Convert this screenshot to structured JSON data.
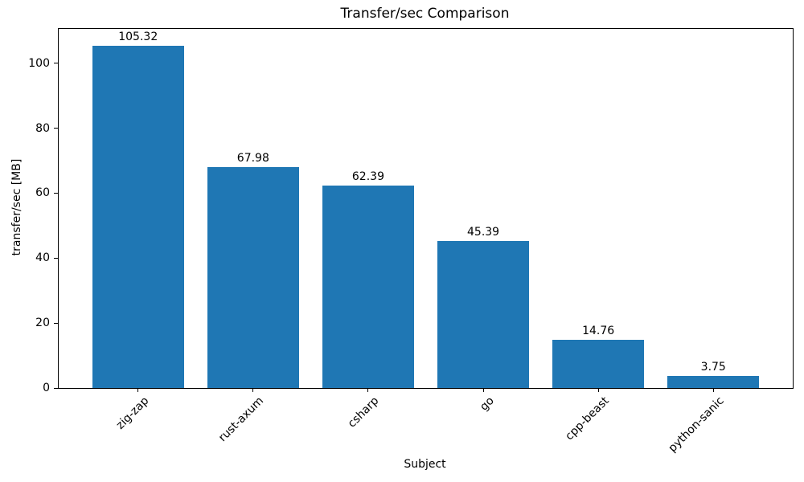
{
  "chart_data": {
    "type": "bar",
    "title": "Transfer/sec Comparison",
    "xlabel": "Subject",
    "ylabel": "transfer/sec [MB]",
    "categories": [
      "zig-zap",
      "rust-axum",
      "csharp",
      "go",
      "cpp-beast",
      "python-sanic"
    ],
    "values": [
      105.32,
      67.98,
      62.39,
      45.39,
      14.76,
      3.75
    ],
    "value_labels": [
      "105.32",
      "67.98",
      "62.39",
      "45.39",
      "14.76",
      "3.75"
    ],
    "ylim": [
      0,
      110.59
    ],
    "yticks": [
      0,
      20,
      40,
      60,
      80,
      100
    ],
    "x_tick_rotation_deg": 45,
    "bar_color": "#1f77b4",
    "spine_color": "#000000",
    "text_color": "#000000",
    "background_color": "#ffffff",
    "grid": false,
    "legend_position": "none"
  }
}
